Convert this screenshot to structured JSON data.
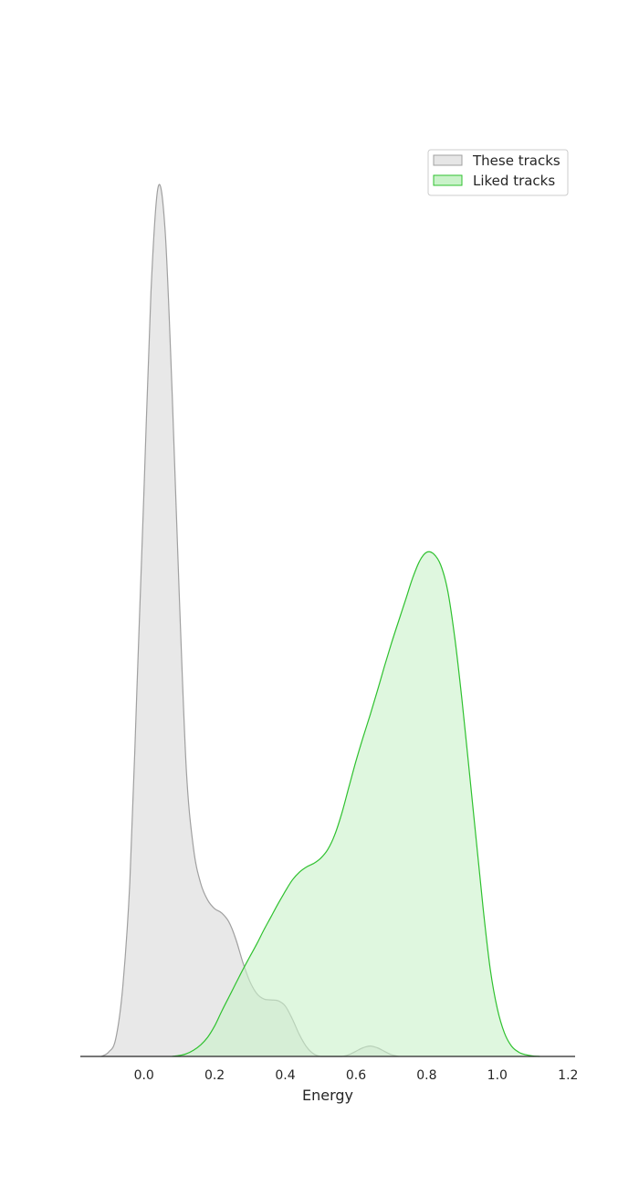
{
  "chart_data": {
    "type": "area",
    "title": "",
    "xlabel": "Energy",
    "ylabel": "",
    "xlim": [
      -0.18,
      1.22
    ],
    "ylim": [
      0,
      1
    ],
    "xticks": [
      "0.0",
      "0.2",
      "0.4",
      "0.6",
      "0.8",
      "1.0",
      "1.2"
    ],
    "grid": false,
    "legend_position": "top-right",
    "series": [
      {
        "name": "These tracks",
        "fill": "#e6e6e6",
        "stroke": "#a0a0a0",
        "points": [
          [
            -0.12,
            0.0
          ],
          [
            -0.1,
            0.005
          ],
          [
            -0.08,
            0.02
          ],
          [
            -0.06,
            0.08
          ],
          [
            -0.04,
            0.2
          ],
          [
            -0.02,
            0.42
          ],
          [
            0.0,
            0.65
          ],
          [
            0.02,
            0.88
          ],
          [
            0.04,
            1.0
          ],
          [
            0.06,
            0.95
          ],
          [
            0.08,
            0.76
          ],
          [
            0.1,
            0.53
          ],
          [
            0.12,
            0.33
          ],
          [
            0.14,
            0.24
          ],
          [
            0.16,
            0.2
          ],
          [
            0.18,
            0.18
          ],
          [
            0.2,
            0.17
          ],
          [
            0.22,
            0.165
          ],
          [
            0.24,
            0.155
          ],
          [
            0.26,
            0.135
          ],
          [
            0.28,
            0.108
          ],
          [
            0.3,
            0.086
          ],
          [
            0.32,
            0.072
          ],
          [
            0.34,
            0.066
          ],
          [
            0.36,
            0.065
          ],
          [
            0.38,
            0.064
          ],
          [
            0.4,
            0.058
          ],
          [
            0.42,
            0.043
          ],
          [
            0.44,
            0.025
          ],
          [
            0.46,
            0.011
          ],
          [
            0.48,
            0.003
          ],
          [
            0.5,
            0.0
          ],
          [
            0.52,
            0.0
          ],
          [
            0.56,
            0.0
          ],
          [
            0.58,
            0.002
          ],
          [
            0.6,
            0.006
          ],
          [
            0.62,
            0.01
          ],
          [
            0.64,
            0.012
          ],
          [
            0.66,
            0.01
          ],
          [
            0.68,
            0.006
          ],
          [
            0.7,
            0.002
          ],
          [
            0.72,
            0.0
          ]
        ]
      },
      {
        "name": "Liked tracks",
        "fill": "#c9f2c9",
        "stroke": "#2fc12f",
        "points": [
          [
            0.08,
            0.0
          ],
          [
            0.1,
            0.001
          ],
          [
            0.12,
            0.003
          ],
          [
            0.14,
            0.007
          ],
          [
            0.16,
            0.013
          ],
          [
            0.18,
            0.022
          ],
          [
            0.2,
            0.035
          ],
          [
            0.22,
            0.052
          ],
          [
            0.24,
            0.068
          ],
          [
            0.26,
            0.084
          ],
          [
            0.28,
            0.1
          ],
          [
            0.3,
            0.115
          ],
          [
            0.32,
            0.13
          ],
          [
            0.34,
            0.146
          ],
          [
            0.36,
            0.161
          ],
          [
            0.38,
            0.176
          ],
          [
            0.4,
            0.19
          ],
          [
            0.42,
            0.203
          ],
          [
            0.44,
            0.212
          ],
          [
            0.46,
            0.218
          ],
          [
            0.48,
            0.222
          ],
          [
            0.5,
            0.228
          ],
          [
            0.52,
            0.238
          ],
          [
            0.54,
            0.255
          ],
          [
            0.56,
            0.28
          ],
          [
            0.58,
            0.31
          ],
          [
            0.6,
            0.34
          ],
          [
            0.62,
            0.367
          ],
          [
            0.64,
            0.393
          ],
          [
            0.66,
            0.42
          ],
          [
            0.68,
            0.448
          ],
          [
            0.7,
            0.475
          ],
          [
            0.72,
            0.5
          ],
          [
            0.74,
            0.525
          ],
          [
            0.76,
            0.55
          ],
          [
            0.78,
            0.57
          ],
          [
            0.8,
            0.58
          ],
          [
            0.82,
            0.578
          ],
          [
            0.84,
            0.565
          ],
          [
            0.86,
            0.535
          ],
          [
            0.88,
            0.48
          ],
          [
            0.9,
            0.41
          ],
          [
            0.92,
            0.33
          ],
          [
            0.94,
            0.25
          ],
          [
            0.96,
            0.17
          ],
          [
            0.98,
            0.1
          ],
          [
            1.0,
            0.055
          ],
          [
            1.02,
            0.027
          ],
          [
            1.04,
            0.012
          ],
          [
            1.06,
            0.005
          ],
          [
            1.08,
            0.002
          ],
          [
            1.1,
            0.0005
          ],
          [
            1.12,
            0.0
          ]
        ]
      }
    ]
  }
}
